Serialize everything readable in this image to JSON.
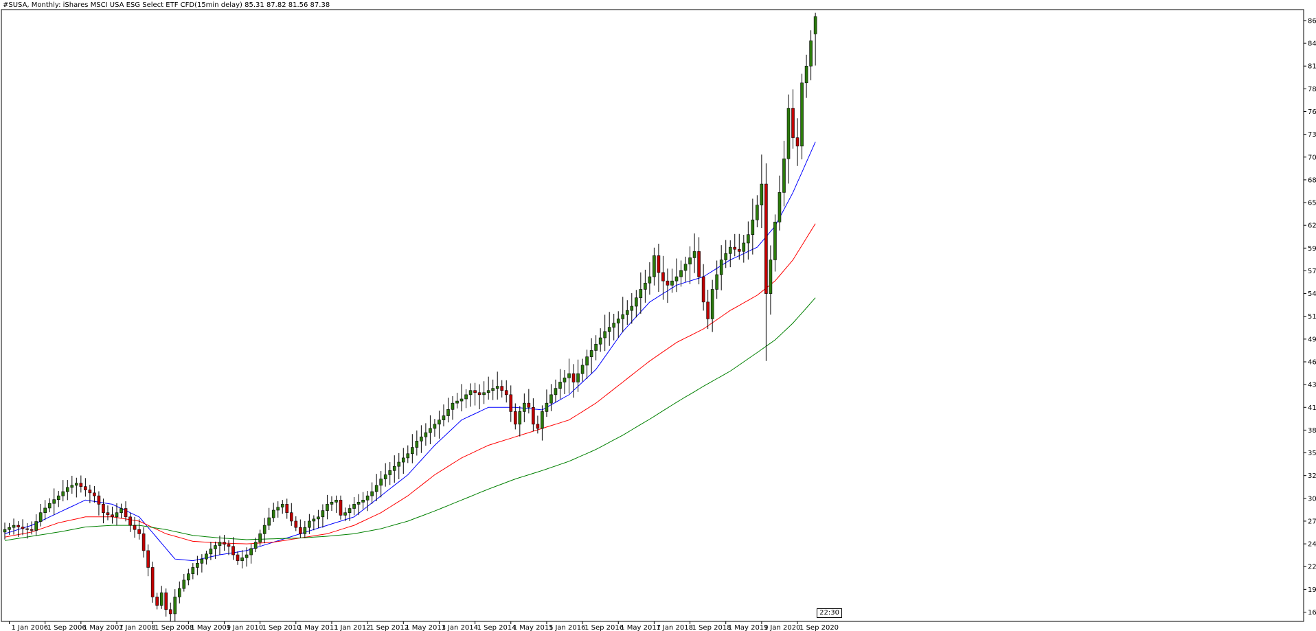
{
  "header": {
    "symbol": "#SUSA, Monthly:",
    "description": "iShares MSCI USA ESG Select ETF CFD(15min delay)",
    "ohlc": "85.31 87.82 81.56 87.38"
  },
  "time_badge": "22:30",
  "colors": {
    "bull": "#2b7a0b",
    "bear": "#c00000",
    "ma_fast": "#0000ff",
    "ma_mid": "#ff0000",
    "ma_slow": "#008000",
    "grid_frame": "#000000"
  },
  "chart_data": {
    "type": "candlestick",
    "timeframe": "Monthly",
    "ylim": [
      15.6,
      88.2
    ],
    "y_ticks": [
      "86.90",
      "84.20",
      "81.50",
      "78.80",
      "76.10",
      "73.40",
      "70.70",
      "68.00",
      "65.30",
      "62.60",
      "59.90",
      "57.20",
      "54.50",
      "51.80",
      "49.10",
      "46.40",
      "43.70",
      "41.00",
      "38.30",
      "35.60",
      "32.90",
      "30.20",
      "27.50",
      "24.80",
      "22.10",
      "19.40",
      "16.70"
    ],
    "x_ticks": [
      {
        "label": "1 Jan 2006",
        "index": 1
      },
      {
        "label": "1 Sep 2006",
        "index": 9
      },
      {
        "label": "1 May 2007",
        "index": 17
      },
      {
        "label": "1 Jan 2008",
        "index": 25
      },
      {
        "label": "1 Sep 2008",
        "index": 33
      },
      {
        "label": "1 May 2009",
        "index": 41
      },
      {
        "label": "1 Jan 2010",
        "index": 49
      },
      {
        "label": "1 Sep 2010",
        "index": 57
      },
      {
        "label": "1 May 2011",
        "index": 65
      },
      {
        "label": "1 Jan 2012",
        "index": 73
      },
      {
        "label": "1 Sep 2012",
        "index": 81
      },
      {
        "label": "1 May 2013",
        "index": 89
      },
      {
        "label": "1 Jan 2014",
        "index": 97
      },
      {
        "label": "1 Sep 2014",
        "index": 105
      },
      {
        "label": "1 May 2015",
        "index": 113
      },
      {
        "label": "1 Jan 2016",
        "index": 121
      },
      {
        "label": "1 Sep 2016",
        "index": 129
      },
      {
        "label": "1 May 2017",
        "index": 137
      },
      {
        "label": "1 Jan 2018",
        "index": 145
      },
      {
        "label": "1 Sep 2018",
        "index": 153
      },
      {
        "label": "1 May 2019",
        "index": 161
      },
      {
        "label": "1 Jan 2020",
        "index": 169
      },
      {
        "label": "1 Sep 2020",
        "index": 177
      }
    ],
    "close_path": [
      [
        0,
        26.5
      ],
      [
        2,
        27.0
      ],
      [
        4,
        26.6
      ],
      [
        6,
        26.4
      ],
      [
        8,
        28.5
      ],
      [
        10,
        29.6
      ],
      [
        12,
        30.5
      ],
      [
        14,
        31.5
      ],
      [
        16,
        32.0
      ],
      [
        18,
        31.2
      ],
      [
        20,
        30.5
      ],
      [
        22,
        28.5
      ],
      [
        24,
        28.0
      ],
      [
        26,
        29.0
      ],
      [
        28,
        27.0
      ],
      [
        30,
        26.0
      ],
      [
        32,
        22.0
      ],
      [
        33,
        18.5
      ],
      [
        34,
        17.5
      ],
      [
        35,
        19.0
      ],
      [
        36,
        17.0
      ],
      [
        37,
        16.5
      ],
      [
        38,
        18.5
      ],
      [
        40,
        20.5
      ],
      [
        42,
        22.0
      ],
      [
        44,
        23.0
      ],
      [
        46,
        24.2
      ],
      [
        48,
        25.0
      ],
      [
        50,
        24.5
      ],
      [
        51,
        23.5
      ],
      [
        52,
        22.8
      ],
      [
        54,
        23.5
      ],
      [
        56,
        25.0
      ],
      [
        58,
        27.0
      ],
      [
        60,
        28.8
      ],
      [
        62,
        29.5
      ],
      [
        64,
        27.5
      ],
      [
        66,
        26.0
      ],
      [
        68,
        27.5
      ],
      [
        70,
        28.0
      ],
      [
        72,
        29.5
      ],
      [
        74,
        30.0
      ],
      [
        75,
        28.2
      ],
      [
        76,
        28.5
      ],
      [
        78,
        29.5
      ],
      [
        80,
        30.0
      ],
      [
        82,
        31.0
      ],
      [
        84,
        32.5
      ],
      [
        86,
        33.5
      ],
      [
        88,
        34.5
      ],
      [
        90,
        35.5
      ],
      [
        92,
        37.0
      ],
      [
        94,
        38.0
      ],
      [
        96,
        39.0
      ],
      [
        98,
        40.0
      ],
      [
        100,
        41.5
      ],
      [
        102,
        42.0
      ],
      [
        104,
        43.0
      ],
      [
        106,
        42.5
      ],
      [
        108,
        43.0
      ],
      [
        110,
        43.5
      ],
      [
        112,
        42.5
      ],
      [
        113,
        40.5
      ],
      [
        114,
        39.0
      ],
      [
        115,
        40.5
      ],
      [
        116,
        41.5
      ],
      [
        117,
        41.0
      ],
      [
        118,
        39.0
      ],
      [
        119,
        38.5
      ],
      [
        120,
        40.5
      ],
      [
        122,
        42.5
      ],
      [
        124,
        44.0
      ],
      [
        126,
        45.0
      ],
      [
        127,
        44.0
      ],
      [
        128,
        45.0
      ],
      [
        130,
        47.0
      ],
      [
        132,
        48.5
      ],
      [
        134,
        50.0
      ],
      [
        136,
        51.0
      ],
      [
        138,
        52.0
      ],
      [
        140,
        53.0
      ],
      [
        142,
        55.0
      ],
      [
        144,
        56.5
      ],
      [
        145,
        59.0
      ],
      [
        146,
        57.0
      ],
      [
        147,
        56.0
      ],
      [
        148,
        55.5
      ],
      [
        150,
        56.5
      ],
      [
        152,
        58.0
      ],
      [
        154,
        59.5
      ],
      [
        155,
        56.5
      ],
      [
        156,
        53.5
      ],
      [
        157,
        51.5
      ],
      [
        158,
        55.0
      ],
      [
        160,
        58.5
      ],
      [
        162,
        60.0
      ],
      [
        164,
        59.5
      ],
      [
        166,
        61.5
      ],
      [
        168,
        65.0
      ],
      [
        169,
        67.5
      ],
      [
        170,
        54.5
      ],
      [
        171,
        58.5
      ],
      [
        172,
        63.0
      ],
      [
        173,
        66.5
      ],
      [
        174,
        70.5
      ],
      [
        175,
        76.5
      ],
      [
        176,
        73.0
      ],
      [
        177,
        72.0
      ],
      [
        178,
        79.5
      ],
      [
        179,
        81.5
      ],
      [
        180,
        84.5
      ],
      [
        181,
        87.38
      ]
    ],
    "moving_averages": [
      {
        "color_key": "ma_fast",
        "points": [
          [
            0,
            26.0
          ],
          [
            6,
            27.0
          ],
          [
            12,
            28.5
          ],
          [
            18,
            30.0
          ],
          [
            24,
            29.5
          ],
          [
            30,
            28.0
          ],
          [
            34,
            25.5
          ],
          [
            38,
            23.0
          ],
          [
            42,
            22.8
          ],
          [
            48,
            23.5
          ],
          [
            54,
            24.0
          ],
          [
            60,
            25.0
          ],
          [
            66,
            26.0
          ],
          [
            72,
            27.0
          ],
          [
            78,
            28.0
          ],
          [
            84,
            30.5
          ],
          [
            90,
            33.0
          ],
          [
            96,
            36.5
          ],
          [
            102,
            39.5
          ],
          [
            108,
            41.0
          ],
          [
            114,
            41.0
          ],
          [
            120,
            40.7
          ],
          [
            126,
            42.5
          ],
          [
            132,
            45.5
          ],
          [
            138,
            50.0
          ],
          [
            144,
            53.5
          ],
          [
            150,
            55.5
          ],
          [
            156,
            56.5
          ],
          [
            162,
            58.5
          ],
          [
            168,
            60.0
          ],
          [
            172,
            62.5
          ],
          [
            176,
            66.5
          ],
          [
            181,
            72.5
          ]
        ]
      },
      {
        "color_key": "ma_mid",
        "points": [
          [
            0,
            25.6
          ],
          [
            6,
            26.2
          ],
          [
            12,
            27.3
          ],
          [
            18,
            28.0
          ],
          [
            24,
            28.0
          ],
          [
            30,
            27.5
          ],
          [
            36,
            26.0
          ],
          [
            42,
            25.1
          ],
          [
            48,
            24.9
          ],
          [
            54,
            24.8
          ],
          [
            60,
            25.0
          ],
          [
            66,
            25.5
          ],
          [
            72,
            26.0
          ],
          [
            78,
            27.0
          ],
          [
            84,
            28.5
          ],
          [
            90,
            30.5
          ],
          [
            96,
            33.0
          ],
          [
            102,
            35.0
          ],
          [
            108,
            36.5
          ],
          [
            114,
            37.5
          ],
          [
            120,
            38.5
          ],
          [
            126,
            39.5
          ],
          [
            132,
            41.5
          ],
          [
            138,
            44.0
          ],
          [
            144,
            46.5
          ],
          [
            150,
            48.7
          ],
          [
            156,
            50.3
          ],
          [
            162,
            52.5
          ],
          [
            168,
            54.3
          ],
          [
            172,
            56.0
          ],
          [
            176,
            58.5
          ],
          [
            181,
            62.8
          ]
        ]
      },
      {
        "color_key": "ma_slow",
        "points": [
          [
            0,
            25.2
          ],
          [
            6,
            25.7
          ],
          [
            12,
            26.2
          ],
          [
            18,
            26.8
          ],
          [
            24,
            27.0
          ],
          [
            30,
            27.0
          ],
          [
            36,
            26.5
          ],
          [
            42,
            25.8
          ],
          [
            48,
            25.5
          ],
          [
            54,
            25.3
          ],
          [
            60,
            25.4
          ],
          [
            66,
            25.5
          ],
          [
            72,
            25.7
          ],
          [
            78,
            26.0
          ],
          [
            84,
            26.6
          ],
          [
            90,
            27.5
          ],
          [
            96,
            28.7
          ],
          [
            102,
            30.0
          ],
          [
            108,
            31.3
          ],
          [
            114,
            32.5
          ],
          [
            120,
            33.5
          ],
          [
            126,
            34.6
          ],
          [
            132,
            36.0
          ],
          [
            138,
            37.7
          ],
          [
            144,
            39.6
          ],
          [
            150,
            41.6
          ],
          [
            156,
            43.5
          ],
          [
            162,
            45.3
          ],
          [
            168,
            47.5
          ],
          [
            172,
            49.0
          ],
          [
            176,
            51.0
          ],
          [
            181,
            54.0
          ]
        ]
      }
    ]
  }
}
